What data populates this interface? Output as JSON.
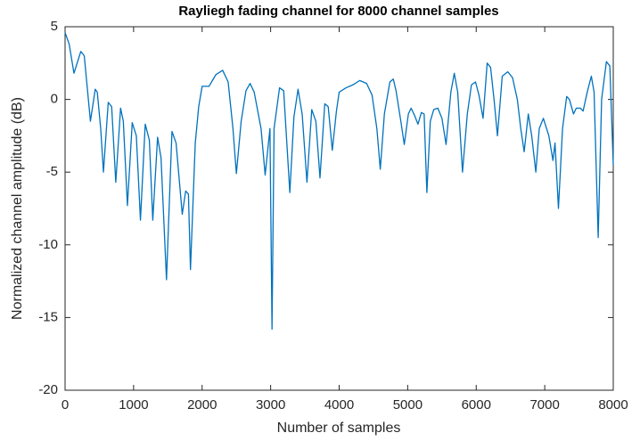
{
  "chart_data": {
    "type": "line",
    "title": "Rayliegh fading channel for 8000 channel samples",
    "x_label": "Number of samples",
    "y_label": "Normalized channel amplitude (dB)",
    "x": [
      0,
      60,
      130,
      230,
      280,
      330,
      370,
      440,
      470,
      520,
      560,
      630,
      680,
      740,
      810,
      850,
      910,
      980,
      1040,
      1100,
      1170,
      1230,
      1280,
      1350,
      1400,
      1480,
      1560,
      1620,
      1710,
      1760,
      1800,
      1830,
      1900,
      1950,
      2000,
      2100,
      2200,
      2300,
      2380,
      2450,
      2500,
      2570,
      2640,
      2700,
      2760,
      2860,
      2920,
      2990,
      3020,
      3050,
      3130,
      3190,
      3280,
      3340,
      3400,
      3460,
      3530,
      3600,
      3660,
      3720,
      3790,
      3840,
      3900,
      3960,
      4000,
      4100,
      4200,
      4300,
      4400,
      4480,
      4550,
      4600,
      4660,
      4740,
      4790,
      4830,
      4900,
      4950,
      5010,
      5050,
      5100,
      5150,
      5200,
      5240,
      5280,
      5330,
      5380,
      5440,
      5500,
      5560,
      5630,
      5680,
      5730,
      5800,
      5870,
      5930,
      5990,
      6040,
      6100,
      6160,
      6210,
      6260,
      6310,
      6380,
      6460,
      6530,
      6600,
      6650,
      6700,
      6760,
      6810,
      6870,
      6920,
      6980,
      7060,
      7120,
      7150,
      7200,
      7260,
      7320,
      7360,
      7420,
      7460,
      7520,
      7560,
      7620,
      7680,
      7720,
      7780,
      7830,
      7900,
      7950,
      8000
    ],
    "series": [
      {
        "color": "#0072bd",
        "values": [
          4.6,
          3.8,
          1.8,
          3.3,
          3.0,
          0.5,
          -1.5,
          0.7,
          0.5,
          -2,
          -5,
          -0.2,
          -0.5,
          -5.7,
          -0.6,
          -1.5,
          -7.3,
          -1.6,
          -2.5,
          -8.3,
          -1.7,
          -2.8,
          -8.3,
          -2.6,
          -4,
          -12.4,
          -2.2,
          -3,
          -7.9,
          -6.3,
          -6.5,
          -11.7,
          -3,
          -0.5,
          0.9,
          0.9,
          1.7,
          2.0,
          1.2,
          -2,
          -5.1,
          -1.5,
          0.6,
          1.1,
          0.5,
          -2,
          -5.2,
          -2,
          -15.8,
          -2,
          0.8,
          0.6,
          -6.4,
          -1.2,
          0.7,
          -1,
          -5.7,
          -0.7,
          -1.5,
          -5.4,
          -0.3,
          -0.5,
          -3.5,
          -0.8,
          0.5,
          0.8,
          1.0,
          1.3,
          1.1,
          0.3,
          -2,
          -4.8,
          -1,
          1.2,
          1.4,
          0.6,
          -1.5,
          -3.1,
          -1,
          -0.6,
          -1.1,
          -1.7,
          -0.9,
          -1,
          -6.4,
          -1.5,
          -0.7,
          -0.6,
          -1.3,
          -3.1,
          0.5,
          1.8,
          0.5,
          -5,
          -1,
          1.0,
          1.2,
          0.3,
          -1.3,
          2.5,
          2.2,
          0,
          -2.5,
          1.6,
          1.9,
          1.5,
          0,
          -2,
          -3.6,
          -1,
          -2.5,
          -5,
          -2,
          -1.3,
          -2.5,
          -4.2,
          -3,
          -7.5,
          -2,
          0.2,
          0,
          -1,
          -0.6,
          -0.6,
          -0.8,
          0.5,
          1.6,
          0.5,
          -9.5,
          0,
          2.6,
          2.3,
          -4.5
        ]
      }
    ],
    "xlim": [
      0,
      8000
    ],
    "xticks": [
      0,
      1000,
      2000,
      3000,
      4000,
      5000,
      6000,
      7000,
      8000
    ],
    "ylim": [
      -20,
      5
    ],
    "yticks": [
      -20,
      -15,
      -10,
      -5,
      0,
      5
    ]
  }
}
